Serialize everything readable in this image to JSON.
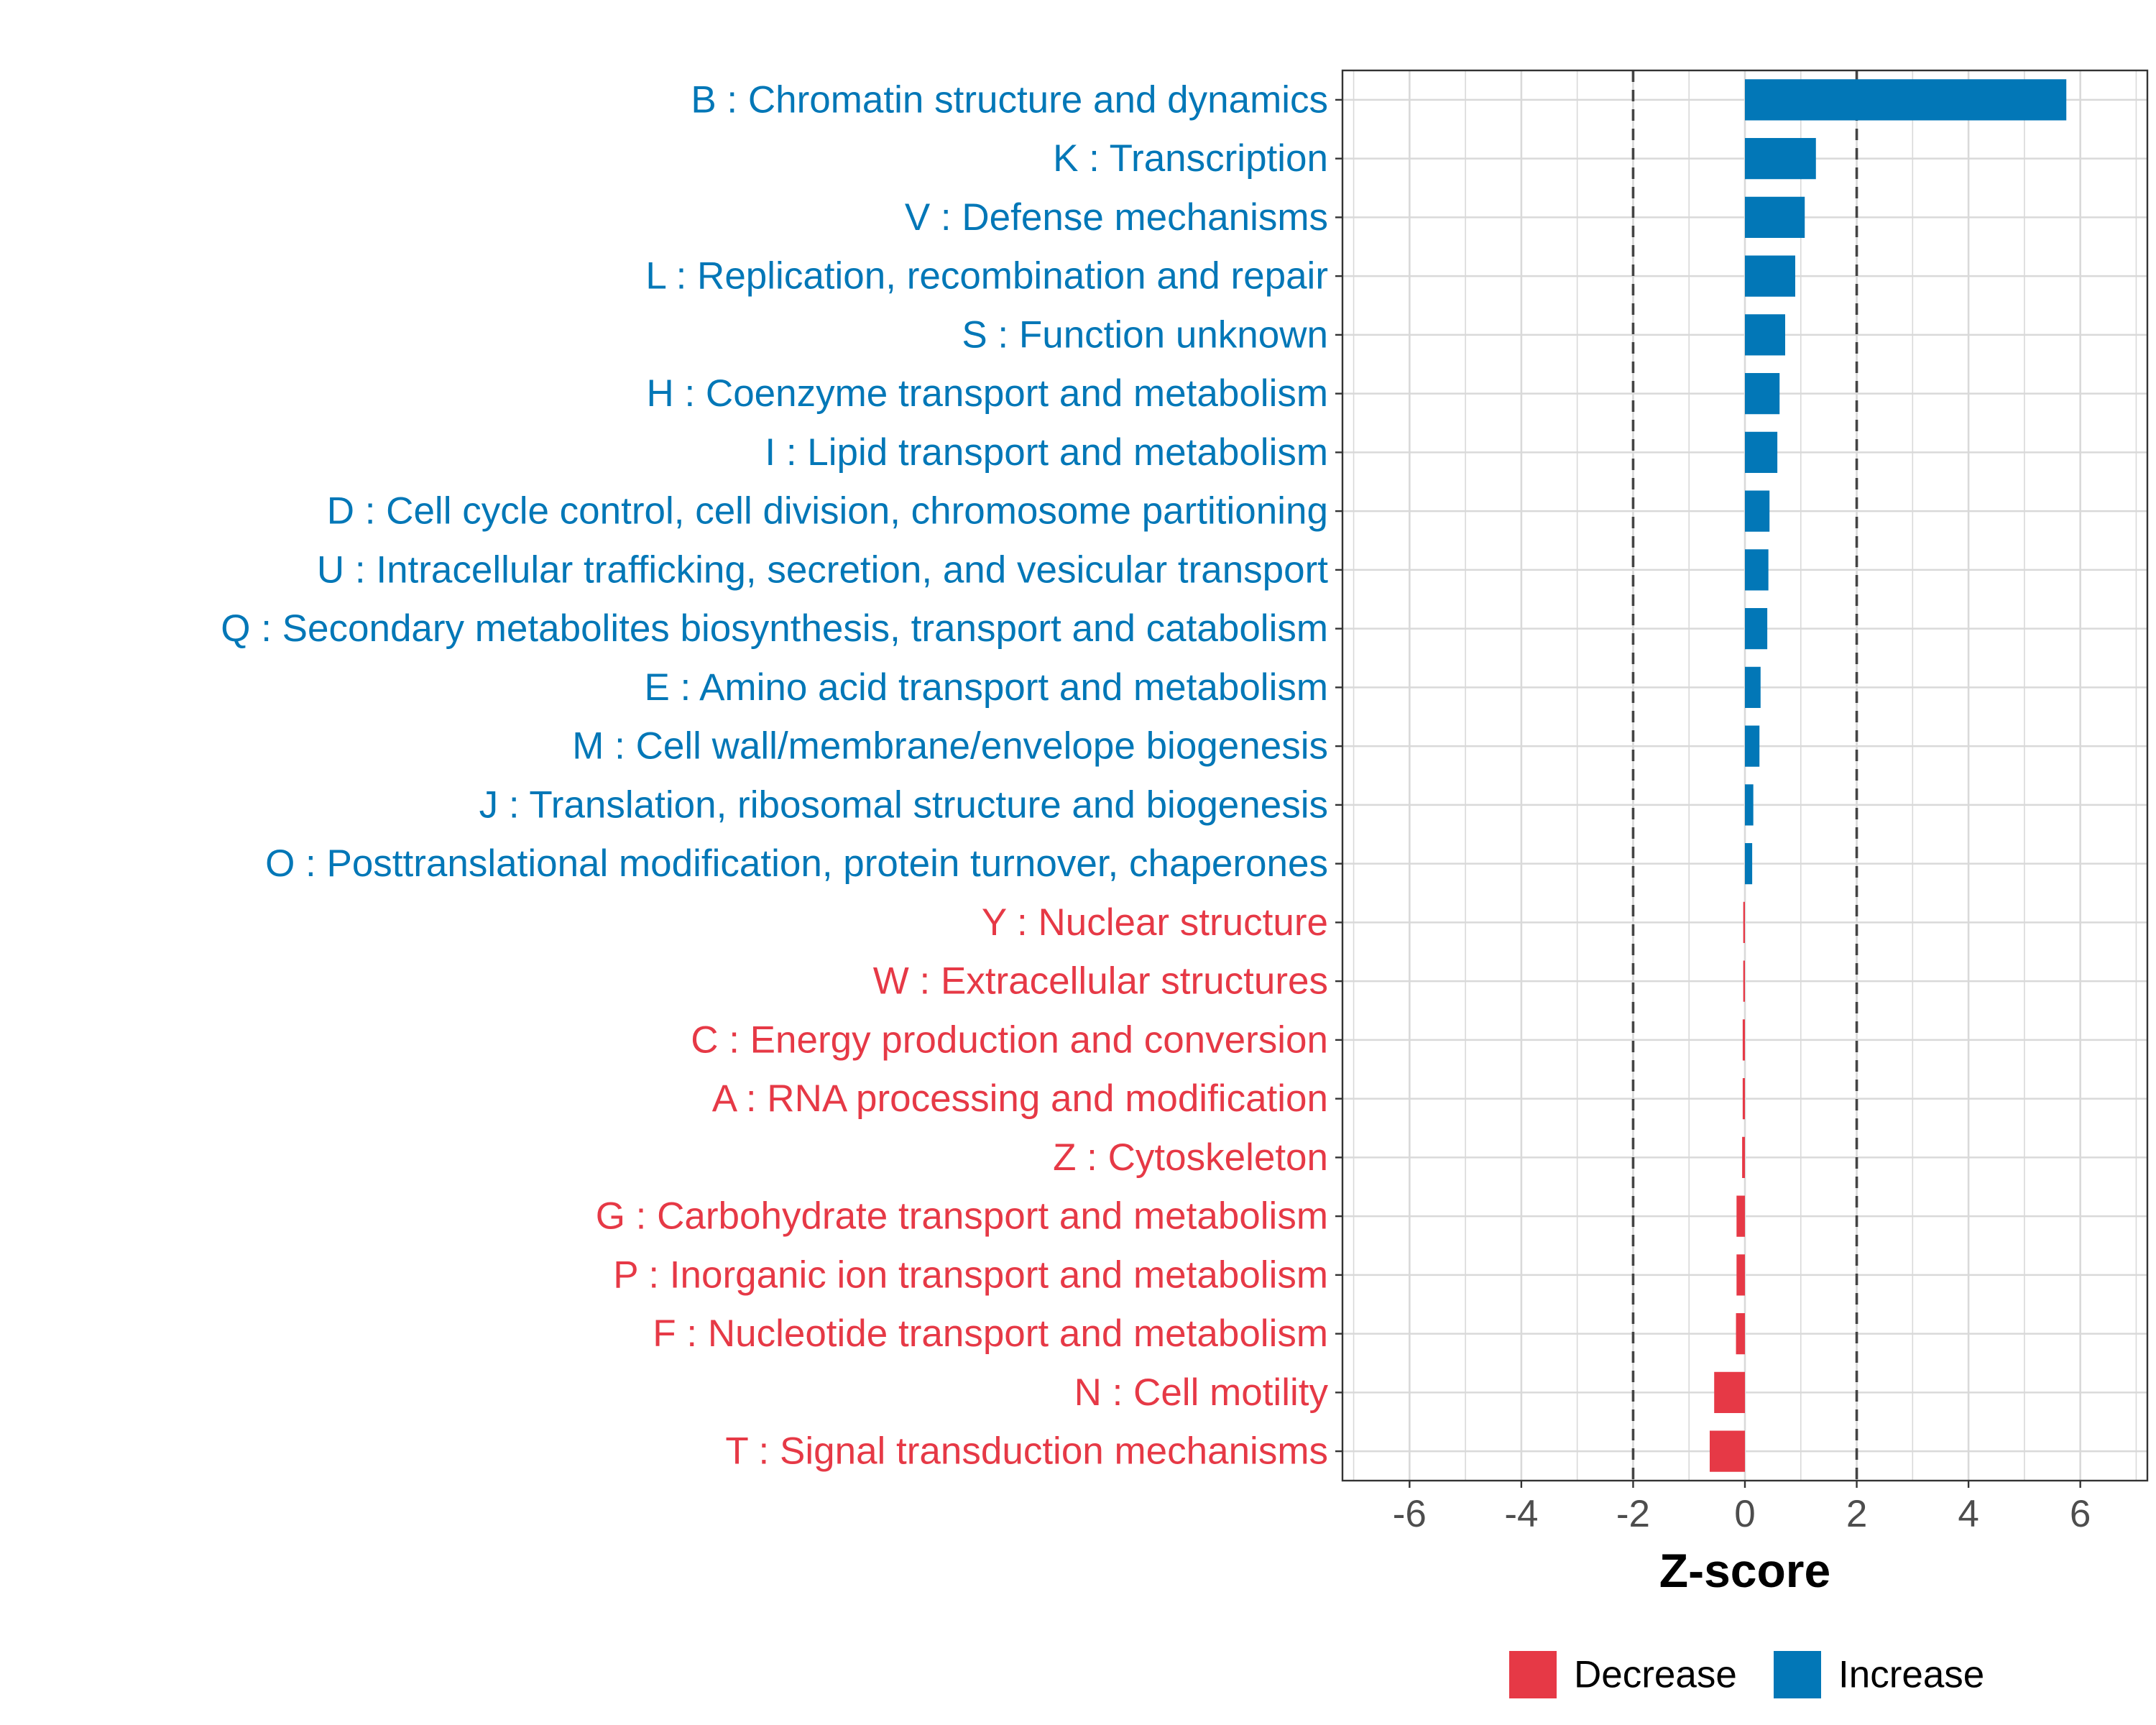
{
  "chart_data": {
    "type": "bar",
    "orientation": "horizontal",
    "xlabel": "Z-score",
    "xlim": [
      -7.2,
      7.2
    ],
    "xticks": [
      -6,
      -4,
      -2,
      0,
      2,
      4,
      6
    ],
    "xtick_labels": [
      "-6",
      "-4",
      "-2",
      "0",
      "2",
      "4",
      "6"
    ],
    "reference_lines": [
      -2,
      2
    ],
    "grid": true,
    "legend_position": "bottom",
    "colors": {
      "Increase": "#0277b7",
      "Decrease": "#e63946",
      "grid": "#d9d9d9",
      "reference_line": "#444444",
      "tick_label": "#4d4d4d",
      "axis_title": "#000000"
    },
    "legend": [
      {
        "label": "Decrease",
        "color": "#e63946"
      },
      {
        "label": "Increase",
        "color": "#0277b7"
      }
    ],
    "categories": [
      {
        "label": "B : Chromatin structure and dynamics",
        "value": 5.75,
        "group": "Increase"
      },
      {
        "label": "K : Transcription",
        "value": 1.27,
        "group": "Increase"
      },
      {
        "label": "V : Defense mechanisms",
        "value": 1.07,
        "group": "Increase"
      },
      {
        "label": "L : Replication, recombination and repair",
        "value": 0.9,
        "group": "Increase"
      },
      {
        "label": "S : Function unknown",
        "value": 0.72,
        "group": "Increase"
      },
      {
        "label": "H : Coenzyme transport and metabolism",
        "value": 0.62,
        "group": "Increase"
      },
      {
        "label": "I : Lipid transport and metabolism",
        "value": 0.58,
        "group": "Increase"
      },
      {
        "label": "D : Cell cycle control, cell division, chromosome partitioning",
        "value": 0.44,
        "group": "Increase"
      },
      {
        "label": "U : Intracellular trafficking, secretion, and vesicular transport",
        "value": 0.42,
        "group": "Increase"
      },
      {
        "label": "Q : Secondary metabolites biosynthesis, transport and catabolism",
        "value": 0.4,
        "group": "Increase"
      },
      {
        "label": "E : Amino acid transport and metabolism",
        "value": 0.28,
        "group": "Increase"
      },
      {
        "label": "M : Cell wall/membrane/envelope biogenesis",
        "value": 0.26,
        "group": "Increase"
      },
      {
        "label": "J : Translation, ribosomal structure and biogenesis",
        "value": 0.15,
        "group": "Increase"
      },
      {
        "label": "O : Posttranslational modification, protein turnover, chaperones",
        "value": 0.13,
        "group": "Increase"
      },
      {
        "label": "Y : Nuclear structure",
        "value": -0.03,
        "group": "Decrease"
      },
      {
        "label": "W : Extracellular structures",
        "value": -0.03,
        "group": "Decrease"
      },
      {
        "label": "C : Energy production and conversion",
        "value": -0.04,
        "group": "Decrease"
      },
      {
        "label": "A : RNA processing and modification",
        "value": -0.04,
        "group": "Decrease"
      },
      {
        "label": "Z : Cytoskeleton",
        "value": -0.05,
        "group": "Decrease"
      },
      {
        "label": "G : Carbohydrate transport and metabolism",
        "value": -0.15,
        "group": "Decrease"
      },
      {
        "label": "P : Inorganic ion transport and metabolism",
        "value": -0.15,
        "group": "Decrease"
      },
      {
        "label": "F : Nucleotide transport and metabolism",
        "value": -0.16,
        "group": "Decrease"
      },
      {
        "label": "N : Cell motility",
        "value": -0.55,
        "group": "Decrease"
      },
      {
        "label": "T : Signal transduction mechanisms",
        "value": -0.63,
        "group": "Decrease"
      }
    ]
  }
}
